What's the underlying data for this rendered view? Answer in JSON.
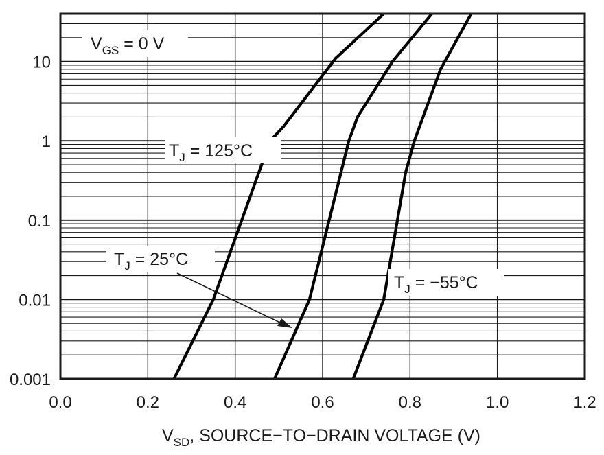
{
  "chart_data": {
    "type": "line",
    "title": "",
    "xlabel": {
      "main": "V",
      "sub": "SD",
      "rest": ", SOURCE−TO−DRAIN VOLTAGE (V)"
    },
    "ylabel": "",
    "xlim": [
      0.0,
      1.2
    ],
    "ylim": [
      0.001,
      40
    ],
    "yscale": "log",
    "x_ticks": [
      0.0,
      0.2,
      0.4,
      0.6,
      0.8,
      1.0,
      1.2
    ],
    "x_tick_labels": [
      "0.0",
      "0.2",
      "0.4",
      "0.6",
      "0.8",
      "1.0",
      "1.2"
    ],
    "y_ticks": [
      0.001,
      0.01,
      0.1,
      1,
      10
    ],
    "y_tick_labels": [
      "0.001",
      "0.01",
      "0.1",
      "1",
      "10"
    ],
    "grid": true,
    "series": [
      {
        "name": "TJ = 125°C",
        "x": [
          0.26,
          0.35,
          0.48,
          0.51,
          0.63,
          0.74
        ],
        "y": [
          0.001,
          0.01,
          1,
          1.5,
          11,
          40
        ]
      },
      {
        "name": "TJ = 25°C",
        "x": [
          0.49,
          0.57,
          0.66,
          0.68,
          0.76,
          0.85
        ],
        "y": [
          0.001,
          0.01,
          1,
          2,
          10,
          40
        ]
      },
      {
        "name": "TJ = −55°C",
        "x": [
          0.67,
          0.74,
          0.79,
          0.81,
          0.87,
          0.94
        ],
        "y": [
          0.001,
          0.01,
          0.4,
          1,
          8,
          40
        ]
      }
    ],
    "annotations": [
      {
        "name": "vgs",
        "main": "V",
        "sub": "GS",
        "rest": " = 0 V"
      },
      {
        "name": "tj125",
        "main": "T",
        "sub": "J",
        "rest": " = 125°C"
      },
      {
        "name": "tj25",
        "main": "T",
        "sub": "J",
        "rest": " = 25°C"
      },
      {
        "name": "tjm55",
        "main": "T",
        "sub": "J",
        "rest": " = −55°C"
      }
    ]
  }
}
